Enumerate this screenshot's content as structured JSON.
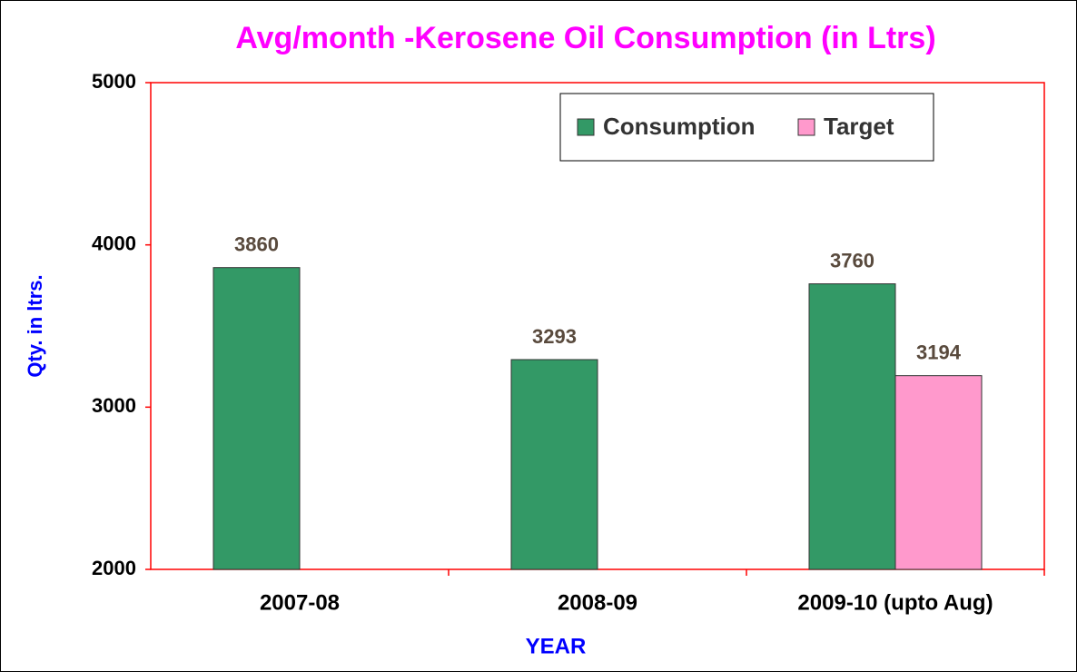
{
  "chart_data": {
    "type": "bar",
    "title": "Avg/month -Kerosene Oil Consumption (in Ltrs)",
    "x_label": "YEAR",
    "y_label": "Qty. in ltrs.",
    "categories": [
      "2007-08",
      "2008-09",
      "2009-10 (upto Aug)"
    ],
    "series": [
      {
        "name": "Consumption",
        "color": "#339966",
        "values": [
          3860,
          3293,
          3760
        ]
      },
      {
        "name": "Target",
        "color": "#ff99cc",
        "values": [
          null,
          null,
          3194
        ]
      }
    ],
    "ylim": [
      2000,
      5000
    ],
    "yticks": [
      2000,
      3000,
      4000,
      5000
    ],
    "grid": false,
    "legend": "top-right"
  }
}
